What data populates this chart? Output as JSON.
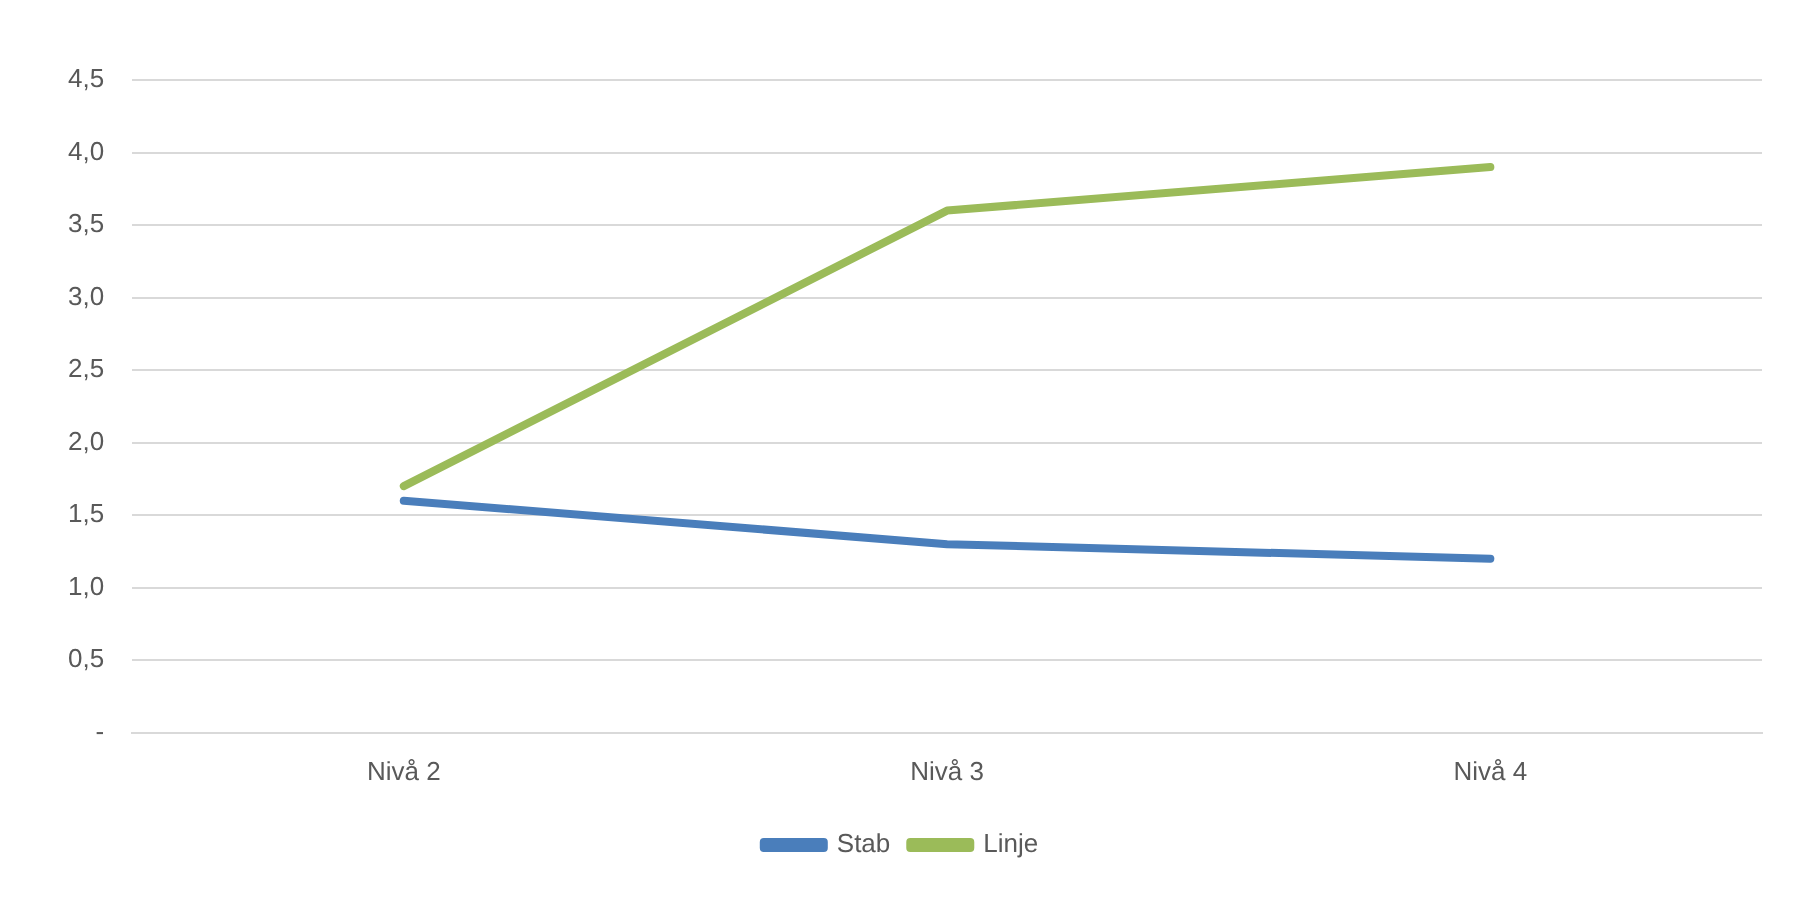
{
  "chart_data": {
    "type": "line",
    "categories": [
      "Nivå 2",
      "Nivå 3",
      "Nivå 4"
    ],
    "series": [
      {
        "name": "Stab",
        "color": "#4a7ebb",
        "values": [
          1.6,
          1.3,
          1.2
        ]
      },
      {
        "name": "Linje",
        "color": "#9bbb59",
        "values": [
          1.7,
          3.6,
          3.9
        ]
      }
    ],
    "ylim": [
      0,
      4.5
    ],
    "yticks": [
      {
        "value": 0,
        "label": "-"
      },
      {
        "value": 0.5,
        "label": "0,5"
      },
      {
        "value": 1,
        "label": "1,0"
      },
      {
        "value": 1.5,
        "label": "1,5"
      },
      {
        "value": 2,
        "label": "2,0"
      },
      {
        "value": 2.5,
        "label": "2,5"
      },
      {
        "value": 3,
        "label": "3,0"
      },
      {
        "value": 3.5,
        "label": "3,5"
      },
      {
        "value": 4,
        "label": "4,0"
      },
      {
        "value": 4.5,
        "label": "4,5"
      }
    ],
    "grid": "y",
    "legend": "bottom",
    "marker": "none",
    "line_style": "solid"
  }
}
